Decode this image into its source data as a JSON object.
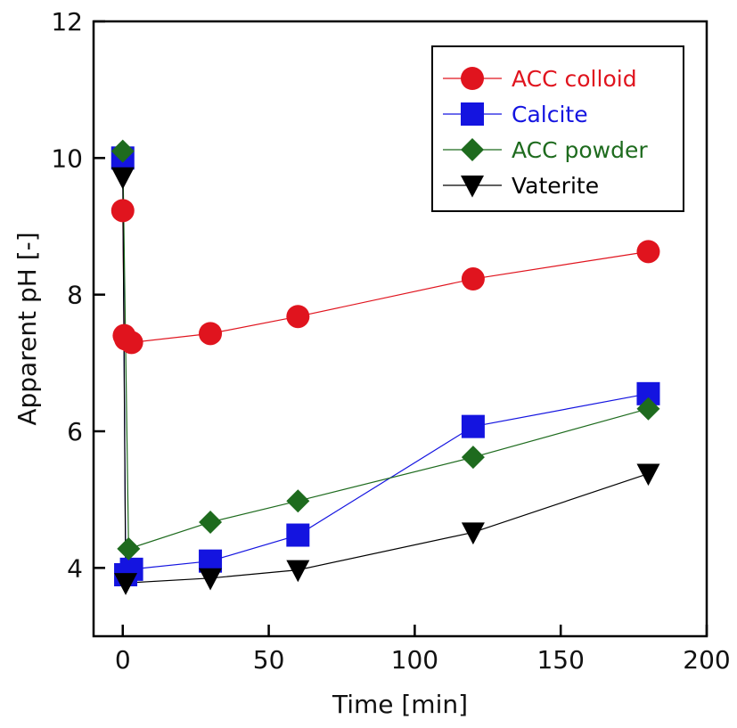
{
  "chart_data": {
    "type": "scatter",
    "title": "",
    "xlabel": "Time [min]",
    "ylabel": "Apparent pH [-]",
    "xlim": [
      -10,
      200
    ],
    "ylim": [
      3,
      12
    ],
    "xticks": [
      0,
      50,
      100,
      150,
      200
    ],
    "yticks": [
      4,
      6,
      8,
      10,
      12
    ],
    "grid": false,
    "legend_position": "top-right",
    "series": [
      {
        "name": "ACC colloid",
        "color": "#e0141e",
        "marker": "circle",
        "x": [
          0,
          0.5,
          1,
          3,
          30,
          60,
          120,
          180
        ],
        "y": [
          9.23,
          7.4,
          7.35,
          7.3,
          7.43,
          7.68,
          8.23,
          8.63
        ]
      },
      {
        "name": "Calcite",
        "color": "#1414e0",
        "marker": "square",
        "x": [
          0,
          1,
          3,
          30,
          60,
          120,
          180
        ],
        "y": [
          10.0,
          3.9,
          3.98,
          4.1,
          4.48,
          6.07,
          6.55
        ]
      },
      {
        "name": "ACC powder",
        "color": "#1e6b1e",
        "marker": "diamond",
        "x": [
          0,
          2,
          30,
          60,
          120,
          180
        ],
        "y": [
          10.1,
          4.28,
          4.67,
          4.98,
          5.62,
          6.33
        ]
      },
      {
        "name": "Vaterite",
        "color": "#000000",
        "marker": "triangle-down",
        "x": [
          0,
          1,
          30,
          60,
          120,
          180
        ],
        "y": [
          9.72,
          3.78,
          3.85,
          3.97,
          4.52,
          5.38
        ]
      }
    ]
  }
}
